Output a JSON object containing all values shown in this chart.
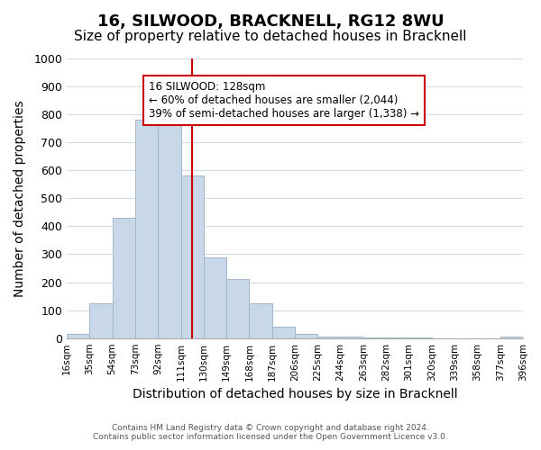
{
  "title": "16, SILWOOD, BRACKNELL, RG12 8WU",
  "subtitle": "Size of property relative to detached houses in Bracknell",
  "xlabel": "Distribution of detached houses by size in Bracknell",
  "ylabel": "Number of detached properties",
  "bar_labels": [
    "16sqm",
    "35sqm",
    "54sqm",
    "73sqm",
    "92sqm",
    "111sqm",
    "130sqm",
    "149sqm",
    "168sqm",
    "187sqm",
    "206sqm",
    "225sqm",
    "244sqm",
    "263sqm",
    "282sqm",
    "301sqm",
    "320sqm",
    "339sqm",
    "358sqm",
    "377sqm",
    "396sqm"
  ],
  "bar_heights": [
    15,
    125,
    430,
    780,
    800,
    580,
    290,
    210,
    125,
    40,
    15,
    5,
    5,
    2,
    1,
    1,
    0,
    0,
    0,
    5
  ],
  "bar_color": "#c8d8e8",
  "bar_edge_color": "#a0b8cc",
  "vline_x": 5.5,
  "vline_color": "#cc0000",
  "annotation_title": "16 SILWOOD: 128sqm",
  "annotation_line1": "← 60% of detached houses are smaller (2,044)",
  "annotation_line2": "39% of semi-detached houses are larger (1,338) →",
  "annotation_box_color": "#ffffff",
  "annotation_box_edge": "#cc0000",
  "ylim": [
    0,
    1000
  ],
  "yticks": [
    0,
    100,
    200,
    300,
    400,
    500,
    600,
    700,
    800,
    900,
    1000
  ],
  "footnote1": "Contains HM Land Registry data © Crown copyright and database right 2024.",
  "footnote2": "Contains public sector information licensed under the Open Government Licence v3.0.",
  "background_color": "#ffffff",
  "grid_color": "#d0dce8",
  "title_fontsize": 13,
  "subtitle_fontsize": 11,
  "xlabel_fontsize": 10,
  "ylabel_fontsize": 10
}
